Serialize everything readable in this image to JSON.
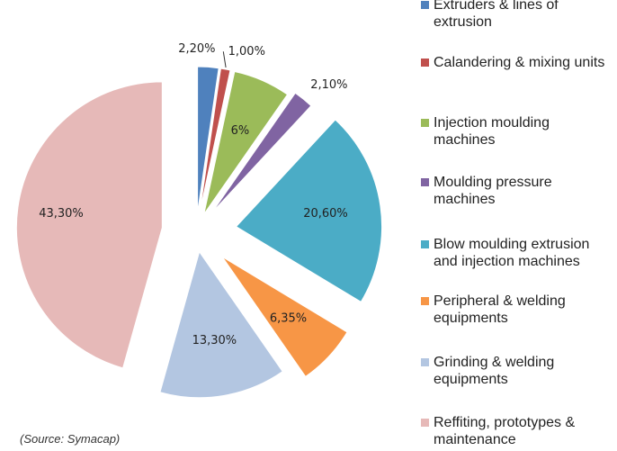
{
  "chart_data": {
    "type": "pie",
    "categories": [
      "Extruders & lines of extrusion",
      "Calandering & mixing units",
      "Injection moulding machines",
      "Moulding pressure machines",
      "Blow moulding extrusion and injection machines",
      "Peripheral & welding equipments",
      "Grinding & welding equipments",
      "Reffiting, prototypes & maintenance"
    ],
    "values": [
      2.2,
      1.0,
      6,
      2.1,
      20.6,
      6.35,
      13.3,
      43.3
    ],
    "value_labels": [
      "2,20%",
      "1,00%",
      "6%",
      "2,10%",
      "20,60%",
      "6,35%",
      "13,30%",
      "43,30%"
    ],
    "colors": [
      "#4f81bd",
      "#c0504d",
      "#9bbb59",
      "#8064a2",
      "#4bacc6",
      "#f79646",
      "#b3c6e1",
      "#e6b9b8"
    ],
    "legend": "right",
    "annotation": "(Source: Symacap)"
  }
}
